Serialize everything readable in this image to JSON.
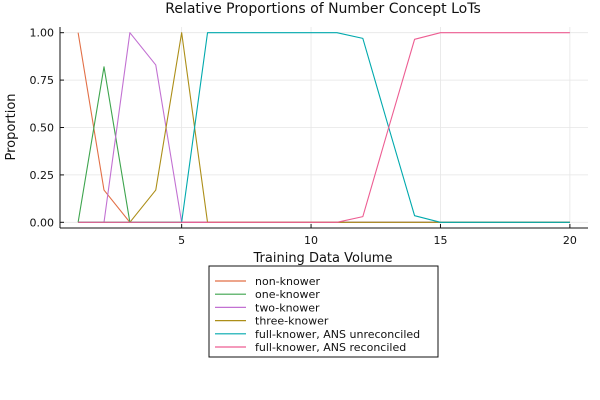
{
  "chart_data": {
    "type": "line",
    "title": "Relative Proportions of Number Concept LoTs",
    "xlabel": "Training Data Volume",
    "ylabel": "Proportion",
    "xlim": [
      0.3,
      20.7
    ],
    "ylim": [
      -0.03,
      1.03
    ],
    "x_ticks": [
      5,
      10,
      15,
      20
    ],
    "x_tick_labels": [
      "5",
      "10",
      "15",
      "20"
    ],
    "y_ticks": [
      0,
      0.25,
      0.5,
      0.75,
      1.0
    ],
    "y_tick_labels": [
      "0.00",
      "0.25",
      "0.50",
      "0.75",
      "1.00"
    ],
    "grid": true,
    "legend_position": "below-center",
    "x": [
      1,
      2,
      3,
      4,
      5,
      6,
      7,
      8,
      9,
      10,
      11,
      12,
      13,
      14,
      15,
      16,
      17,
      18,
      19,
      20
    ],
    "series": [
      {
        "name": "non-knower",
        "color": "#E26F46",
        "values": [
          1.0,
          0.17,
          0,
          0,
          0,
          0,
          0,
          0,
          0,
          0,
          0,
          0,
          0,
          0,
          0,
          0,
          0,
          0,
          0,
          0
        ]
      },
      {
        "name": "one-knower",
        "color": "#3DA44D",
        "values": [
          0,
          0.82,
          0,
          0,
          0,
          0,
          0,
          0,
          0,
          0,
          0,
          0,
          0,
          0,
          0,
          0,
          0,
          0,
          0,
          0
        ]
      },
      {
        "name": "two-knower",
        "color": "#C271D2",
        "values": [
          0,
          0,
          1.0,
          0.83,
          0,
          0,
          0,
          0,
          0,
          0,
          0,
          0,
          0,
          0,
          0,
          0,
          0,
          0,
          0,
          0
        ]
      },
      {
        "name": "three-knower",
        "color": "#AC8E18",
        "values": [
          0,
          0,
          0,
          0.17,
          1.0,
          0,
          0,
          0,
          0,
          0,
          0,
          0,
          0,
          0,
          0,
          0,
          0,
          0,
          0,
          0
        ]
      },
      {
        "name": "full-knower, ANS unreconciled",
        "color": "#00A9AD",
        "values": [
          0,
          0,
          0,
          0,
          0,
          1.0,
          1.0,
          1.0,
          1.0,
          1.0,
          1.0,
          0.97,
          0.5,
          0.035,
          0,
          0,
          0,
          0,
          0,
          0
        ]
      },
      {
        "name": "full-knower, ANS reconciled",
        "color": "#ED5D92",
        "values": [
          0,
          0,
          0,
          0,
          0,
          0,
          0,
          0,
          0,
          0,
          0,
          0.03,
          0.5,
          0.965,
          1.0,
          1.0,
          1.0,
          1.0,
          1.0,
          1.0
        ]
      }
    ]
  }
}
